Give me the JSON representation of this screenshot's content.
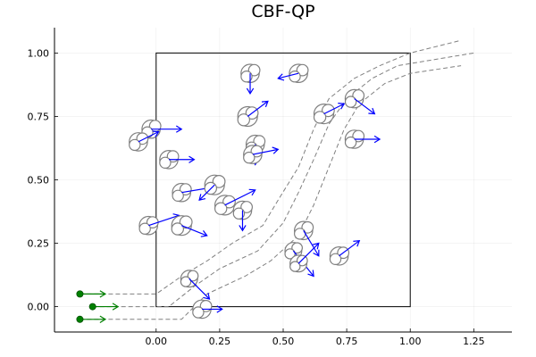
{
  "chart_data": {
    "type": "scatter",
    "title": "CBF-QP",
    "xlabel": "",
    "ylabel": "",
    "xlim": [
      -0.4,
      1.4
    ],
    "ylim": [
      -0.1,
      1.1
    ],
    "xticks": [
      {
        "value": 0.0,
        "label": "0.00"
      },
      {
        "value": 0.25,
        "label": "0.25"
      },
      {
        "value": 0.5,
        "label": "0.50"
      },
      {
        "value": 0.75,
        "label": "0.75"
      },
      {
        "value": 1.0,
        "label": "1.00"
      },
      {
        "value": 1.25,
        "label": "1.25"
      }
    ],
    "yticks": [
      {
        "value": 0.0,
        "label": "0.00"
      },
      {
        "value": 0.25,
        "label": "0.25"
      },
      {
        "value": 0.5,
        "label": "0.50"
      },
      {
        "value": 0.75,
        "label": "0.75"
      },
      {
        "value": 1.0,
        "label": "1.00"
      }
    ],
    "grid": true,
    "legend": "none",
    "colors": {
      "obstacle": "#808080",
      "obstacle_velocity": "#0000ff",
      "agent": "#008000",
      "path": "#808080",
      "boundary": "#000000"
    },
    "boundary": [
      [
        0,
        0
      ],
      [
        1,
        0
      ],
      [
        1,
        1
      ],
      [
        0,
        1
      ]
    ],
    "paths": [
      {
        "points": [
          [
            -0.3,
            0.05
          ],
          [
            -0.1,
            0.05
          ],
          [
            0.0,
            0.05
          ],
          [
            0.1,
            0.12
          ],
          [
            0.2,
            0.18
          ],
          [
            0.3,
            0.25
          ],
          [
            0.42,
            0.32
          ],
          [
            0.48,
            0.42
          ],
          [
            0.56,
            0.55
          ],
          [
            0.62,
            0.7
          ],
          [
            0.68,
            0.82
          ],
          [
            0.78,
            0.9
          ],
          [
            0.88,
            0.95
          ],
          [
            1.0,
            1.0
          ],
          [
            1.2,
            1.05
          ]
        ]
      },
      {
        "points": [
          [
            -0.25,
            0.0
          ],
          [
            0.05,
            0.0
          ],
          [
            0.15,
            0.08
          ],
          [
            0.25,
            0.15
          ],
          [
            0.4,
            0.22
          ],
          [
            0.5,
            0.33
          ],
          [
            0.56,
            0.45
          ],
          [
            0.62,
            0.58
          ],
          [
            0.68,
            0.72
          ],
          [
            0.75,
            0.82
          ],
          [
            0.85,
            0.9
          ],
          [
            0.95,
            0.95
          ],
          [
            1.25,
            1.0
          ]
        ]
      },
      {
        "points": [
          [
            -0.3,
            -0.05
          ],
          [
            0.1,
            -0.05
          ],
          [
            0.2,
            0.05
          ],
          [
            0.35,
            0.12
          ],
          [
            0.45,
            0.18
          ],
          [
            0.56,
            0.28
          ],
          [
            0.62,
            0.4
          ],
          [
            0.68,
            0.55
          ],
          [
            0.74,
            0.7
          ],
          [
            0.8,
            0.8
          ],
          [
            0.9,
            0.88
          ],
          [
            1.0,
            0.92
          ],
          [
            1.2,
            0.95
          ]
        ]
      }
    ],
    "agents": [
      {
        "x": -0.3,
        "y": 0.05,
        "vx": 0.1,
        "vy": 0.0
      },
      {
        "x": -0.25,
        "y": 0.0,
        "vx": 0.1,
        "vy": 0.0
      },
      {
        "x": -0.3,
        "y": -0.05,
        "vx": 0.1,
        "vy": 0.0
      }
    ],
    "obstacles": [
      {
        "x": -0.02,
        "y": 0.7,
        "r": 0.065,
        "vx": 0.06,
        "vy": 0.0
      },
      {
        "x": -0.07,
        "y": 0.65,
        "r": 0.065,
        "vx": 0.04,
        "vy": 0.02
      },
      {
        "x": 0.05,
        "y": 0.58,
        "r": 0.065,
        "vx": 0.05,
        "vy": 0.0
      },
      {
        "x": 0.1,
        "y": 0.45,
        "r": 0.065,
        "vx": 0.06,
        "vy": 0.01
      },
      {
        "x": 0.23,
        "y": 0.48,
        "r": 0.07,
        "vx": -0.03,
        "vy": -0.03
      },
      {
        "x": -0.03,
        "y": 0.32,
        "r": 0.065,
        "vx": 0.06,
        "vy": 0.02
      },
      {
        "x": 0.1,
        "y": 0.32,
        "r": 0.07,
        "vx": 0.05,
        "vy": -0.02
      },
      {
        "x": 0.37,
        "y": 0.92,
        "r": 0.065,
        "vx": 0.0,
        "vy": -0.04
      },
      {
        "x": 0.56,
        "y": 0.92,
        "r": 0.065,
        "vx": -0.04,
        "vy": -0.01
      },
      {
        "x": 0.36,
        "y": 0.75,
        "r": 0.07,
        "vx": 0.04,
        "vy": 0.03
      },
      {
        "x": 0.39,
        "y": 0.64,
        "r": 0.065,
        "vx": 0.0,
        "vy": -0.04
      },
      {
        "x": 0.38,
        "y": 0.6,
        "r": 0.065,
        "vx": 0.05,
        "vy": 0.01
      },
      {
        "x": 0.27,
        "y": 0.4,
        "r": 0.07,
        "vx": 0.06,
        "vy": 0.03
      },
      {
        "x": 0.34,
        "y": 0.38,
        "r": 0.065,
        "vx": 0.0,
        "vy": -0.04
      },
      {
        "x": 0.66,
        "y": 0.76,
        "r": 0.07,
        "vx": 0.04,
        "vy": 0.02
      },
      {
        "x": 0.78,
        "y": 0.82,
        "r": 0.065,
        "vx": 0.04,
        "vy": -0.03
      },
      {
        "x": 0.78,
        "y": 0.66,
        "r": 0.065,
        "vx": 0.05,
        "vy": 0.0
      },
      {
        "x": 0.58,
        "y": 0.3,
        "r": 0.065,
        "vx": 0.03,
        "vy": -0.05
      },
      {
        "x": 0.54,
        "y": 0.22,
        "r": 0.06,
        "vx": 0.04,
        "vy": -0.05
      },
      {
        "x": 0.56,
        "y": 0.17,
        "r": 0.06,
        "vx": 0.04,
        "vy": 0.04
      },
      {
        "x": 0.72,
        "y": 0.2,
        "r": 0.065,
        "vx": 0.04,
        "vy": 0.03
      },
      {
        "x": 0.13,
        "y": 0.11,
        "r": 0.06,
        "vx": 0.04,
        "vy": -0.04
      },
      {
        "x": 0.18,
        "y": -0.01,
        "r": 0.065,
        "vx": 0.04,
        "vy": 0.0
      }
    ]
  }
}
